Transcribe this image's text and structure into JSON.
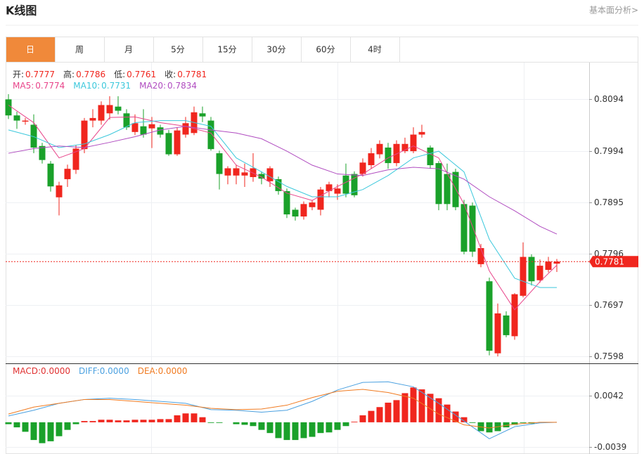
{
  "header": {
    "title": "K线图",
    "link": "基本面分析>"
  },
  "tabs": [
    "日",
    "周",
    "月",
    "5分",
    "15分",
    "30分",
    "60分",
    "4时"
  ],
  "active_tab": 0,
  "chart_data": {
    "type": "candlestick",
    "up_color": "#f0261e",
    "down_color": "#1aa12a",
    "price_panel": {
      "quote": [
        {
          "name": "开:",
          "value": 0.7777
        },
        {
          "name": "高:",
          "value": 0.7786
        },
        {
          "name": "低:",
          "value": 0.7761
        },
        {
          "name": "收:",
          "value": 0.7781
        }
      ],
      "ylim": [
        0.7586,
        0.8165
      ],
      "yticks": [
        0.8094,
        0.7994,
        0.7895,
        0.7796,
        0.7697,
        0.7598
      ],
      "last_price": 0.7781,
      "open": [
        0.8094,
        0.8063,
        0.8051,
        0.8045,
        0.8004,
        0.797,
        0.7905,
        0.794,
        0.7958,
        0.7998,
        0.8053,
        0.8053,
        0.8067,
        0.808,
        0.8067,
        0.8031,
        0.8042,
        0.8038,
        0.804,
        0.8029,
        0.7988,
        0.8026,
        0.8029,
        0.8067,
        0.8053,
        0.799,
        0.7947,
        0.7947,
        0.7947,
        0.7944,
        0.795,
        0.7936,
        0.794,
        0.7917,
        0.7881,
        0.7868,
        0.7886,
        0.7881,
        0.7917,
        0.7912,
        0.7947,
        0.795,
        0.795,
        0.7967,
        0.7988,
        0.8001,
        0.7971,
        0.7994,
        0.7994,
        0.8026,
        0.8001,
        0.7971,
        0.795,
        0.7954,
        0.7892,
        0.7889,
        0.7776,
        0.7743,
        0.7604,
        0.7677,
        0.7637,
        0.7715,
        0.779,
        0.7745,
        0.7765,
        0.7777
      ],
      "high": [
        0.8104,
        0.807,
        0.8058,
        0.8065,
        0.801,
        0.7975,
        0.7935,
        0.7968,
        0.8005,
        0.8058,
        0.8075,
        0.809,
        0.81,
        0.81,
        0.8075,
        0.8065,
        0.8075,
        0.806,
        0.8045,
        0.8035,
        0.804,
        0.806,
        0.808,
        0.808,
        0.806,
        0.7995,
        0.7965,
        0.7968,
        0.797,
        0.799,
        0.7955,
        0.7965,
        0.7945,
        0.7922,
        0.7885,
        0.7897,
        0.79,
        0.7925,
        0.7935,
        0.793,
        0.797,
        0.7955,
        0.798,
        0.8,
        0.8015,
        0.801,
        0.8015,
        0.802,
        0.804,
        0.8045,
        0.8005,
        0.7975,
        0.797,
        0.796,
        0.79,
        0.7895,
        0.7815,
        0.775,
        0.77,
        0.7685,
        0.772,
        0.7818,
        0.7795,
        0.7785,
        0.779,
        0.7786
      ],
      "low": [
        0.8056,
        0.8037,
        0.8045,
        0.799,
        0.797,
        0.7916,
        0.787,
        0.7925,
        0.795,
        0.799,
        0.804,
        0.8045,
        0.8055,
        0.8065,
        0.8035,
        0.8025,
        0.802,
        0.8,
        0.802,
        0.7985,
        0.7985,
        0.802,
        0.8025,
        0.805,
        0.7995,
        0.792,
        0.793,
        0.793,
        0.7925,
        0.7935,
        0.793,
        0.7925,
        0.791,
        0.7865,
        0.786,
        0.7862,
        0.788,
        0.787,
        0.7905,
        0.79,
        0.7905,
        0.7905,
        0.7945,
        0.796,
        0.798,
        0.796,
        0.7965,
        0.799,
        0.799,
        0.802,
        0.796,
        0.788,
        0.788,
        0.788,
        0.7795,
        0.779,
        0.777,
        0.76,
        0.7598,
        0.7635,
        0.763,
        0.7712,
        0.7735,
        0.774,
        0.776,
        0.7761
      ],
      "close": [
        0.8063,
        0.8053,
        0.8053,
        0.8001,
        0.7977,
        0.7926,
        0.7928,
        0.796,
        0.7999,
        0.8053,
        0.8058,
        0.8083,
        0.8083,
        0.8072,
        0.804,
        0.8048,
        0.8026,
        0.8046,
        0.8026,
        0.7988,
        0.8034,
        0.8048,
        0.8069,
        0.8061,
        0.7998,
        0.795,
        0.7961,
        0.7961,
        0.7953,
        0.7961,
        0.7941,
        0.7961,
        0.7917,
        0.7872,
        0.7868,
        0.7892,
        0.7895,
        0.792,
        0.793,
        0.7922,
        0.7912,
        0.7909,
        0.7972,
        0.799,
        0.8008,
        0.7971,
        0.8008,
        0.8008,
        0.8026,
        0.8031,
        0.7967,
        0.7892,
        0.7892,
        0.7886,
        0.78,
        0.78,
        0.7807,
        0.7609,
        0.7681,
        0.7639,
        0.7718,
        0.779,
        0.7743,
        0.7773,
        0.7781,
        0.7781
      ],
      "ma": [
        {
          "name": "MA5:",
          "last": 0.7774,
          "color": "#e8448a",
          "x": [
            0,
            3,
            6,
            9,
            12,
            15,
            18,
            21,
            24,
            27,
            30,
            33,
            36,
            39,
            42,
            45,
            48,
            51,
            54,
            57,
            60,
            63,
            65
          ],
          "values": [
            0.8083,
            0.8049,
            0.7981,
            0.7999,
            0.8059,
            0.806,
            0.8049,
            0.8042,
            0.8029,
            0.7967,
            0.7944,
            0.7913,
            0.7899,
            0.7926,
            0.795,
            0.7981,
            0.8004,
            0.7981,
            0.7892,
            0.7763,
            0.7688,
            0.7742,
            0.7774
          ]
        },
        {
          "name": "MA10:",
          "last": 0.7731,
          "color": "#3cc8dc",
          "x": [
            0,
            3,
            6,
            9,
            12,
            15,
            18,
            21,
            24,
            27,
            30,
            33,
            36,
            39,
            42,
            45,
            48,
            51,
            54,
            57,
            60,
            63,
            65
          ],
          "values": [
            0.8035,
            0.8022,
            0.8001,
            0.8008,
            0.8026,
            0.8049,
            0.8053,
            0.8053,
            0.8042,
            0.7981,
            0.7954,
            0.7926,
            0.7906,
            0.7906,
            0.792,
            0.7947,
            0.7981,
            0.7994,
            0.7954,
            0.7824,
            0.7749,
            0.7731,
            0.7731
          ]
        },
        {
          "name": "MA20:",
          "last": 0.7834,
          "color": "#b04cc0",
          "x": [
            0,
            3,
            6,
            9,
            12,
            15,
            18,
            21,
            24,
            27,
            30,
            33,
            36,
            39,
            42,
            45,
            48,
            51,
            54,
            57,
            60,
            63,
            65
          ],
          "values": [
            0.799,
            0.7999,
            0.8004,
            0.8001,
            0.8011,
            0.8022,
            0.8035,
            0.8042,
            0.8035,
            0.8029,
            0.8018,
            0.7994,
            0.7967,
            0.795,
            0.7947,
            0.7958,
            0.7963,
            0.796,
            0.794,
            0.7906,
            0.7879,
            0.7849,
            0.7834
          ]
        }
      ]
    },
    "macd_panel": {
      "legend": [
        {
          "text": "MACD:0.0000",
          "color": "#e03030"
        },
        {
          "text": "DIFF:0.0000",
          "color": "#4aa0e0"
        },
        {
          "text": "DEA:0.0000",
          "color": "#f07a20"
        }
      ],
      "ylim": [
        -0.0049,
        0.0092
      ],
      "yticks": [
        0.0042,
        -0.0039
      ],
      "histogram": [
        -0.0003,
        -0.0008,
        -0.0015,
        -0.0028,
        -0.0033,
        -0.003,
        -0.0022,
        -0.0012,
        -0.0003,
        0.0002,
        0.0002,
        0.0004,
        0.0004,
        0.0003,
        0.0003,
        0.0004,
        0.0004,
        0.0004,
        0.0005,
        0.0005,
        0.0011,
        0.0014,
        0.0014,
        0.0008,
        -0.0001,
        -0.0001,
        0,
        -0.0003,
        -0.0004,
        -0.0006,
        -0.0012,
        -0.0017,
        -0.0025,
        -0.0028,
        -0.0028,
        -0.0025,
        -0.0023,
        -0.0017,
        -0.0016,
        -0.0012,
        -0.0006,
        0.0001,
        0.0011,
        0.0018,
        0.0024,
        0.0031,
        0.0035,
        0.0046,
        0.0055,
        0.0052,
        0.0045,
        0.0038,
        0.0028,
        0.0017,
        0.0008,
        -0.0001,
        -0.0014,
        -0.0016,
        -0.0014,
        -0.0008,
        -0.0004,
        -0.0001,
        -0.0002,
        0,
        0,
        0
      ],
      "lines": [
        {
          "color": "#4aa0e0",
          "x": [
            0,
            3,
            6,
            9,
            12,
            15,
            18,
            21,
            24,
            27,
            30,
            33,
            36,
            39,
            42,
            45,
            48,
            51,
            54,
            57,
            60,
            63,
            65
          ],
          "values": [
            0.001,
            0.0019,
            0.003,
            0.0036,
            0.0038,
            0.0036,
            0.0033,
            0.003,
            0.002,
            0.0019,
            0.0016,
            0.0019,
            0.0033,
            0.0051,
            0.0063,
            0.0064,
            0.0056,
            0.003,
            0.0002,
            -0.0026,
            -0.0007,
            -0.0001,
            0
          ]
        },
        {
          "color": "#f07a20",
          "x": [
            0,
            3,
            6,
            9,
            12,
            15,
            18,
            21,
            24,
            27,
            30,
            33,
            36,
            39,
            42,
            45,
            48,
            51,
            54,
            57,
            60,
            63,
            65
          ],
          "values": [
            0.0013,
            0.0024,
            0.003,
            0.0036,
            0.0036,
            0.0033,
            0.003,
            0.0027,
            0.0022,
            0.002,
            0.0021,
            0.0027,
            0.0039,
            0.0049,
            0.0052,
            0.0047,
            0.0038,
            0.0013,
            -0.0004,
            -0.0009,
            -0.0003,
            0,
            0
          ]
        }
      ]
    }
  }
}
